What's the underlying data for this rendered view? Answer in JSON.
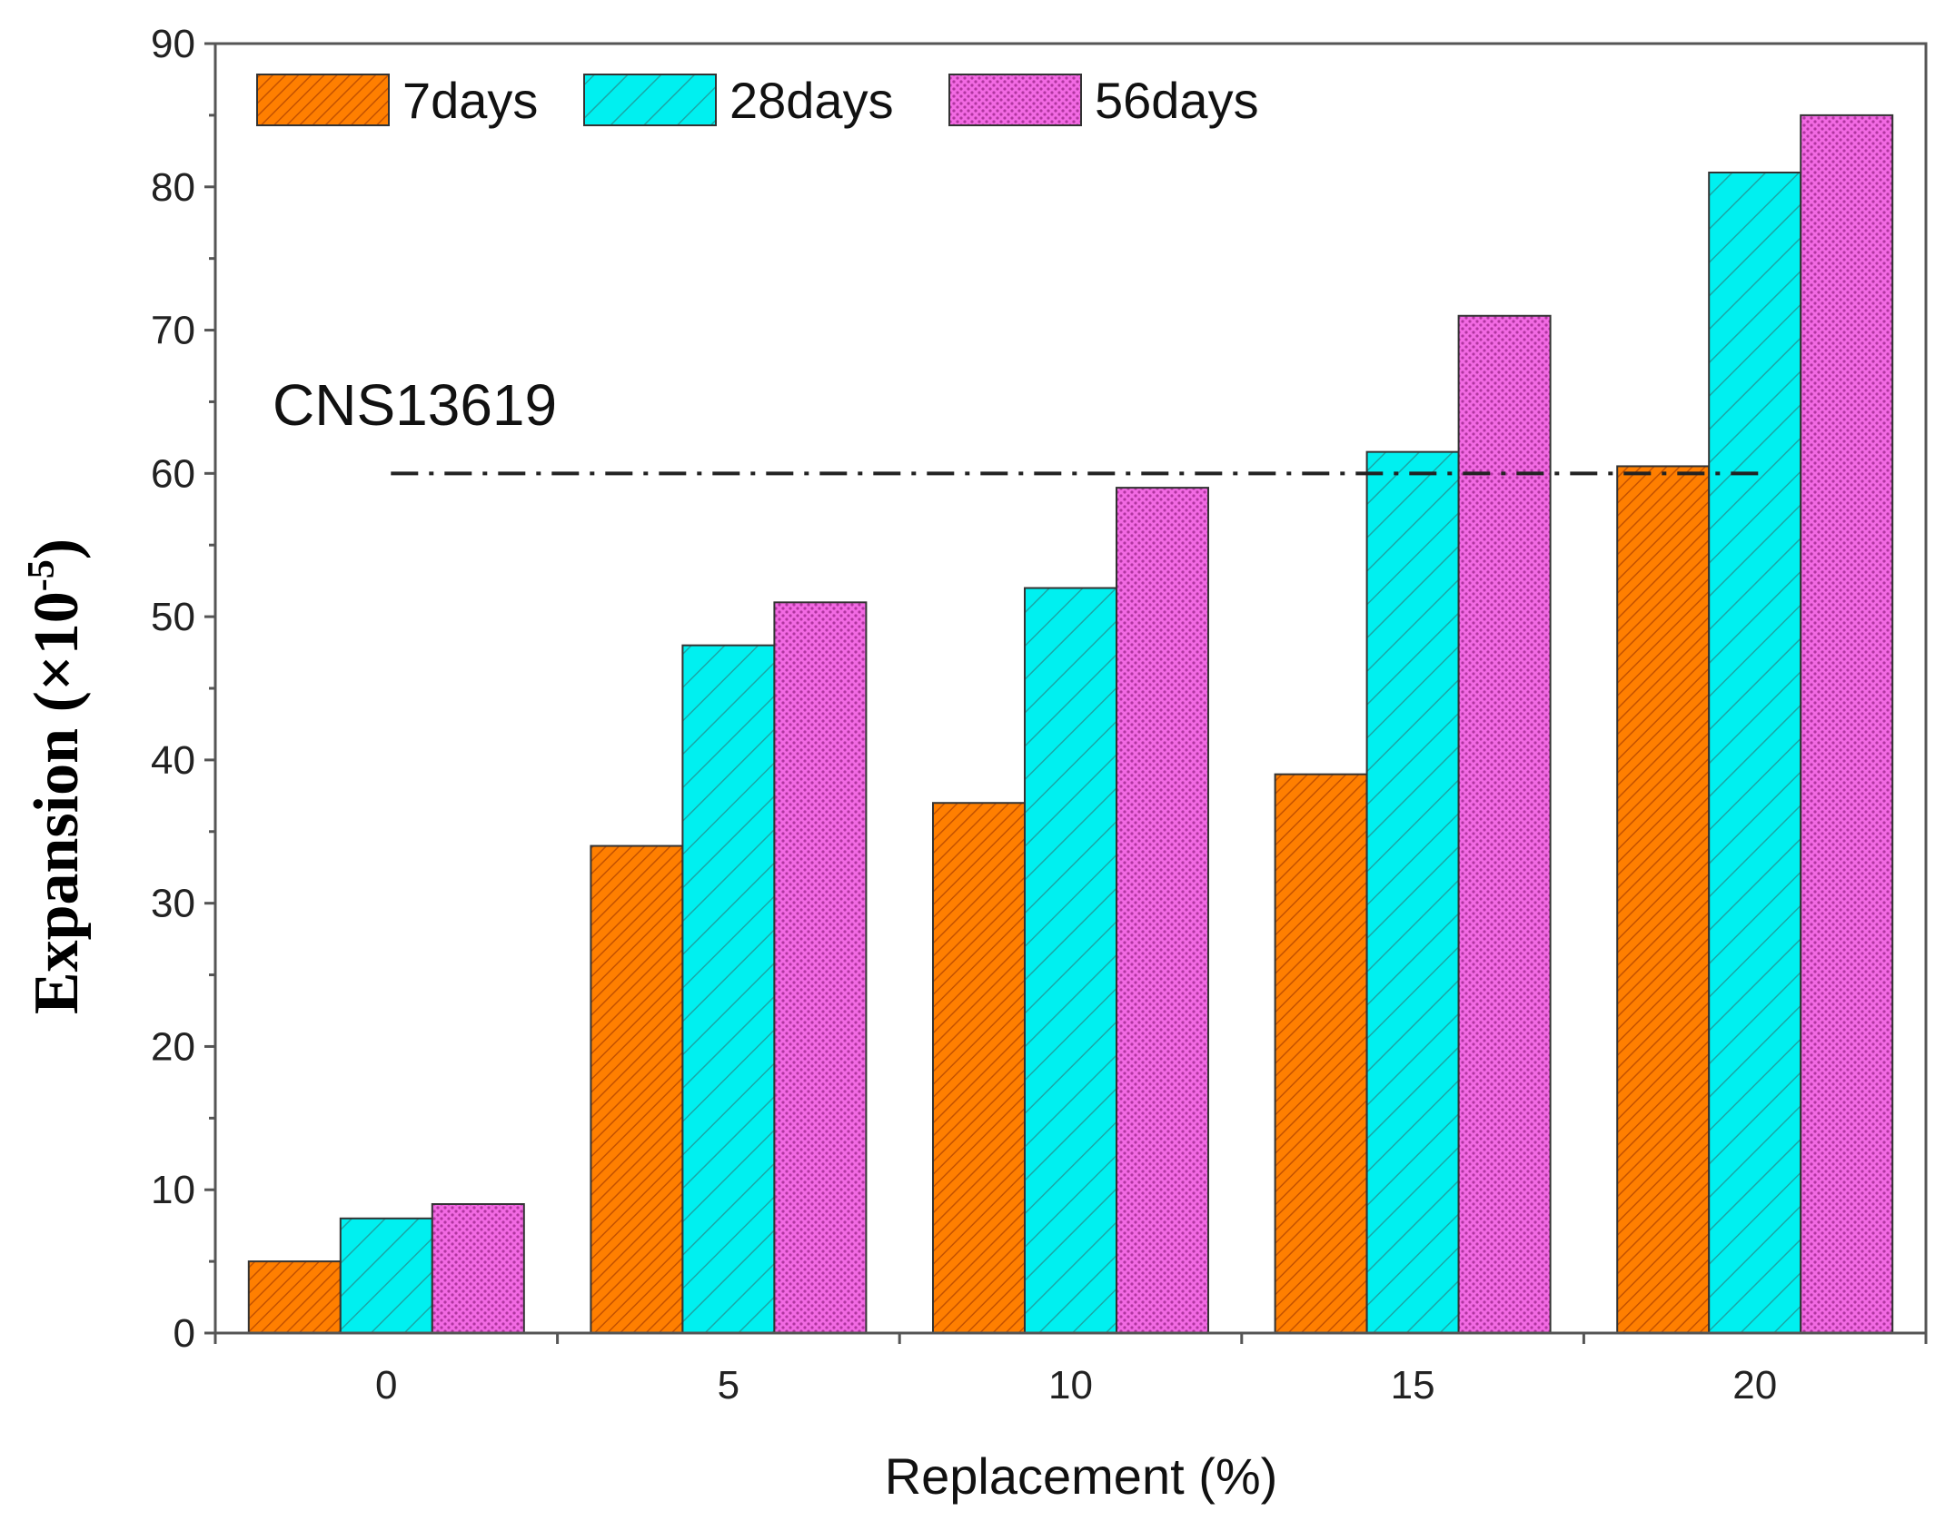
{
  "chart_data": {
    "type": "bar",
    "title": "",
    "xlabel": "Replacement (%)",
    "ylabel": "Expansion (×10",
    "ylabel_superscript": "-5",
    "ylabel_close": ")",
    "ylim": [
      0,
      90
    ],
    "yticks": [
      "0",
      "10",
      "20",
      "30",
      "40",
      "50",
      "60",
      "70",
      "80",
      "90"
    ],
    "categories": [
      "0",
      "5",
      "10",
      "15",
      "20"
    ],
    "series": [
      {
        "name": "7days",
        "color": "#ff7f00",
        "pattern": "dense-diagonal",
        "values": [
          5,
          34,
          37,
          39,
          60.5
        ]
      },
      {
        "name": "28days",
        "color": "#00f0f0",
        "pattern": "diagonal",
        "values": [
          8,
          48,
          52,
          61.5,
          81
        ]
      },
      {
        "name": "56days",
        "color": "#f060e0",
        "pattern": "dots",
        "values": [
          9,
          51,
          59,
          71,
          85
        ]
      }
    ],
    "reference_line": {
      "label": "CNS13619",
      "value": 60,
      "x_from": 0,
      "x_to": 20,
      "style": "dash-dot"
    },
    "legend_position": "top-left",
    "grid": false
  }
}
